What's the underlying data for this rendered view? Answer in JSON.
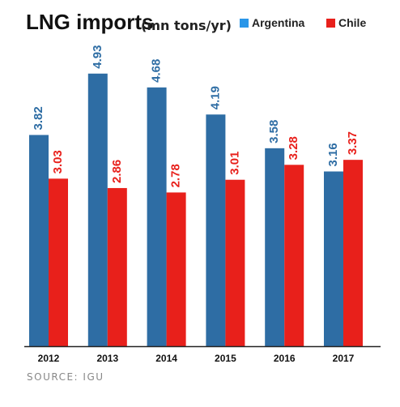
{
  "title": "LNG imports",
  "title_unit": "(mn tons/yr)",
  "legend": [
    {
      "label": "Argentina",
      "color": "#2e6da4"
    },
    {
      "label": "Chile",
      "color": "#e8201b"
    }
  ],
  "source": "SOURCE: IGU",
  "colors": {
    "argentina_label": "#2e6da4",
    "chile_label": "#e8201b",
    "legend_argentina_swatch": "#2a96e8",
    "legend_chile_swatch": "#e8201b"
  },
  "chart_data": {
    "type": "bar",
    "title": "LNG imports",
    "ylabel": "",
    "xlabel": "",
    "categories": [
      "2012",
      "2013",
      "2014",
      "2015",
      "2016",
      "2017"
    ],
    "series": [
      {
        "name": "Argentina",
        "values": [
          3.82,
          4.93,
          4.68,
          4.19,
          3.58,
          3.16
        ],
        "labels": [
          "3.82",
          "4.93",
          "4.68",
          "4.19",
          "3.58",
          "3.16"
        ]
      },
      {
        "name": "Chile",
        "values": [
          3.03,
          2.86,
          2.78,
          3.01,
          3.28,
          3.37
        ],
        "labels": [
          "3.03",
          "2.86",
          "2.78",
          "3.01",
          "3.28",
          "3.37"
        ]
      }
    ],
    "ylim": [
      0,
      5.5
    ],
    "grid": false,
    "legend_position": "top-right"
  }
}
